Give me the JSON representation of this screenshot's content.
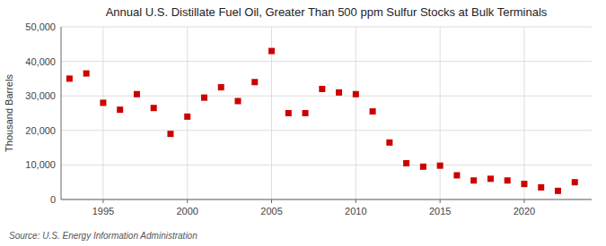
{
  "chart_data": {
    "type": "scatter",
    "title": "Annual U.S. Distillate Fuel Oil, Greater Than 500 ppm Sulfur Stocks at Bulk Terminals",
    "ylabel": "Thousand Barrels",
    "annotation": "Source: U.S. Energy Information Administration",
    "x": [
      1993,
      1994,
      1995,
      1996,
      1997,
      1998,
      1999,
      2000,
      2001,
      2002,
      2003,
      2004,
      2005,
      2006,
      2007,
      2008,
      2009,
      2010,
      2011,
      2012,
      2013,
      2014,
      2015,
      2016,
      2017,
      2018,
      2019,
      2020,
      2021,
      2022,
      2023
    ],
    "values": [
      35000,
      36500,
      28000,
      26000,
      30500,
      26500,
      19000,
      24000,
      29500,
      32500,
      28500,
      34000,
      43000,
      25000,
      25000,
      32000,
      31000,
      30500,
      25500,
      16500,
      10500,
      9500,
      9800,
      7000,
      5500,
      6000,
      5500,
      4500,
      3500,
      2500,
      5000
    ],
    "color": "#cc0000",
    "marker": "square",
    "grid": true,
    "xlim": [
      1992.5,
      2024
    ],
    "xticks": [
      1995,
      2000,
      2005,
      2010,
      2015,
      2020
    ],
    "ylim": [
      0,
      50000
    ],
    "yticks": [
      0,
      {
        "value": 10000,
        "label": "10,000"
      },
      {
        "value": 20000,
        "label": "20,000"
      },
      {
        "value": 30000,
        "label": "30,000"
      },
      {
        "value": 40000,
        "label": "40,000"
      },
      {
        "value": 50000,
        "label": "50,000"
      }
    ]
  }
}
